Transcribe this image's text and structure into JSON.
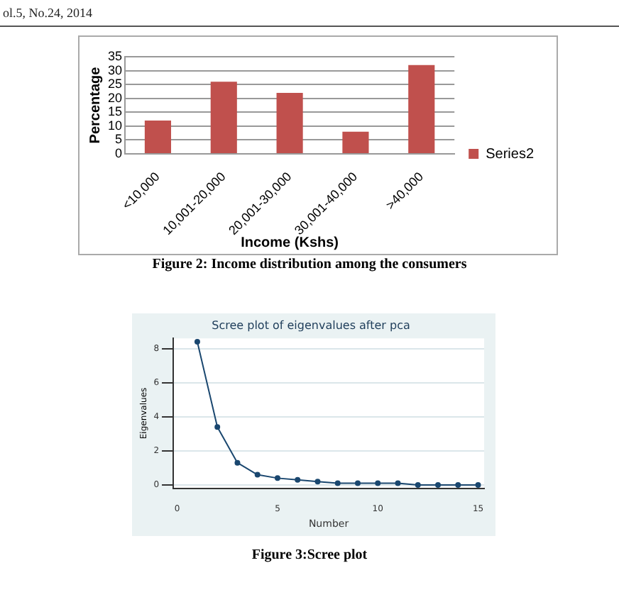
{
  "chart_data": [
    {
      "type": "bar",
      "xlabel": "Income (Kshs)",
      "ylabel": "Percentage",
      "categories": [
        "<10,000",
        "10,001-20,000",
        "20,001-30,000",
        "30,001-40,000",
        ">40,000"
      ],
      "series": [
        {
          "name": "Series2",
          "color": "#c0504d",
          "values": [
            12,
            26,
            22,
            8,
            32
          ]
        }
      ],
      "ylim": [
        0,
        35
      ],
      "yticks": [
        0,
        5,
        10,
        15,
        20,
        25,
        30,
        35
      ],
      "grid": "y",
      "legend": "right",
      "annotations": [
        "ol.5, No.24, 2014",
        "Figure 2: Income distribution among the consumers"
      ]
    },
    {
      "type": "line",
      "title": "Scree plot of eigenvalues after pca",
      "xlabel": "Number",
      "ylabel": "Eigenvalues",
      "x": [
        1,
        2,
        3,
        4,
        5,
        6,
        7,
        8,
        9,
        10,
        11,
        12,
        13,
        14,
        15
      ],
      "series": [
        {
          "color": "#1a476f",
          "values": [
            8.4,
            3.4,
            1.3,
            0.6,
            0.4,
            0.3,
            0.2,
            0.1,
            0.1,
            0.1,
            0.1,
            0.0,
            0.0,
            0.0,
            0.0
          ]
        }
      ],
      "xlim": [
        -0.2,
        15.3
      ],
      "xticks": [
        0,
        5,
        10,
        15
      ],
      "ylim": [
        -0.2,
        8.6
      ],
      "yticks": [
        0,
        2,
        4,
        6,
        8
      ],
      "grid": "y",
      "marker": "circle",
      "line_style": "solid",
      "annotations": [
        "Figure 3:Scree plot"
      ]
    }
  ]
}
